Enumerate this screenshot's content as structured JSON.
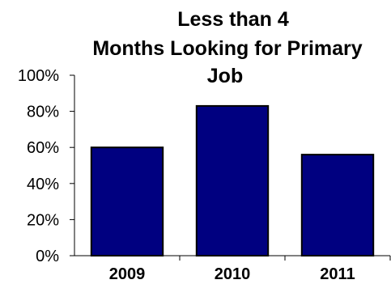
{
  "chart_data": {
    "type": "bar",
    "title_lines": [
      "Less than 4",
      "Months Looking for Primary",
      "Job"
    ],
    "categories": [
      "2009",
      "2010",
      "2011"
    ],
    "values": [
      60,
      83,
      56
    ],
    "ylim": [
      0,
      100
    ],
    "yticks": [
      {
        "value": 0,
        "label": "0%"
      },
      {
        "value": 20,
        "label": "20%"
      },
      {
        "value": 40,
        "label": "40%"
      },
      {
        "value": 60,
        "label": "60%"
      },
      {
        "value": 80,
        "label": "80%"
      },
      {
        "value": 100,
        "label": "100%"
      }
    ],
    "bar_color": "#000080",
    "xlabel": "",
    "ylabel": "",
    "grid": false,
    "legend": false
  }
}
